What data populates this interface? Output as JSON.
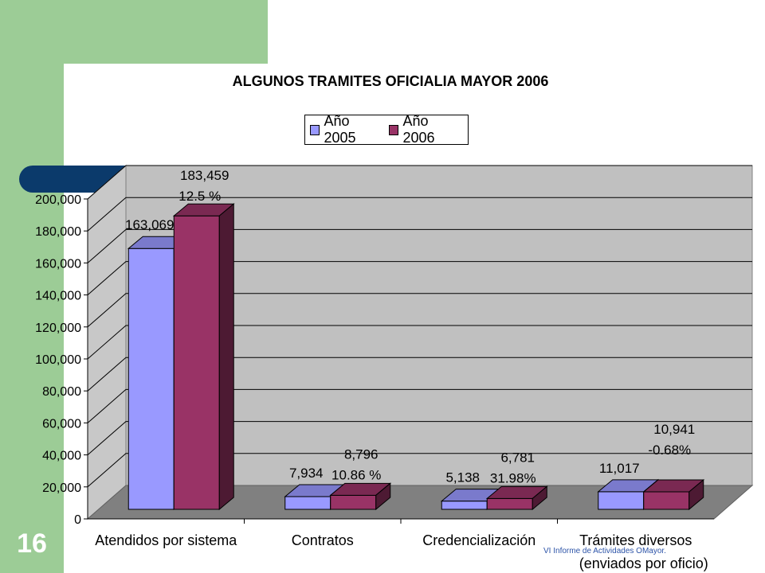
{
  "slide": {
    "number": "16",
    "footer": "VI Informe de Actividades OMayor."
  },
  "chart_data": {
    "type": "bar",
    "title": "ALGUNOS TRAMITES OFICIALIA MAYOR 2006",
    "categories": [
      "Atendidos por sistema",
      "Contratos",
      "Credencialización",
      "Trámites diversos"
    ],
    "category_sublabels": [
      "",
      "",
      "",
      "(enviados por oficio)"
    ],
    "series": [
      {
        "name": "Año 2005",
        "color": "#9999ff",
        "values": [
          163069,
          7934,
          5138,
          11017
        ],
        "labels": [
          "163,069",
          "7,934",
          "5,138",
          "11,017"
        ]
      },
      {
        "name": "Año 2006",
        "color": "#993366",
        "values": [
          183459,
          8796,
          6781,
          10941
        ],
        "labels": [
          "183,459",
          "8,796",
          "6,781",
          "10,941"
        ]
      }
    ],
    "percent_labels": [
      "12.5 %",
      "10.86 %",
      "31.98%",
      "-0.68%"
    ],
    "yticks": [
      "0",
      "20,000",
      "40,000",
      "60,000",
      "80,000",
      "100,000",
      "120,000",
      "140,000",
      "160,000",
      "180,000",
      "200,000"
    ],
    "ylim": [
      0,
      200000
    ],
    "grid": true,
    "legend_position": "top-center"
  }
}
